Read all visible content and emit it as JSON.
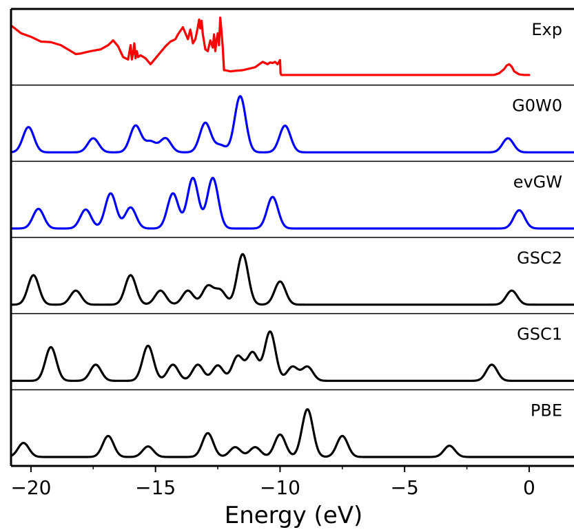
{
  "chart_data": {
    "type": "line",
    "xlabel": "Energy (eV)",
    "ylabel": "",
    "xlim": [
      -20.8,
      1.8
    ],
    "xticks": [
      -20,
      -15,
      -10,
      -5,
      0
    ],
    "xtick_labels": [
      "−20",
      "−15",
      "−10",
      "−5",
      "0"
    ],
    "grid": false,
    "legend": "none",
    "panels": [
      {
        "label": "Exp",
        "color": "#ff0000",
        "kind": "experimental",
        "y_max": 1.0,
        "x": [
          -20.8,
          -20.4,
          -20.0,
          -19.6,
          -19.2,
          -18.8,
          -18.4,
          -18.2,
          -18.0,
          -17.6,
          -17.2,
          -16.9,
          -16.7,
          -16.5,
          -16.3,
          -16.1,
          -16.0,
          -15.95,
          -15.9,
          -15.85,
          -15.8,
          -15.75,
          -15.7,
          -15.6,
          -15.4,
          -15.2,
          -15.0,
          -14.8,
          -14.6,
          -14.4,
          -14.2,
          -14.1,
          -13.9,
          -13.8,
          -13.7,
          -13.6,
          -13.5,
          -13.4,
          -13.3,
          -13.25,
          -13.2,
          -13.15,
          -13.1,
          -13.0,
          -12.9,
          -12.8,
          -12.7,
          -12.65,
          -12.6,
          -12.55,
          -12.5,
          -12.45,
          -12.4,
          -12.35,
          -12.3,
          -12.25,
          -12.2,
          -12.1,
          -12.0,
          -11.8,
          -11.5,
          -11.0,
          -10.7,
          -10.5,
          -10.4,
          -10.3,
          -10.2,
          -10.1,
          -10.0,
          -9.98,
          -9.95,
          -9.9,
          -9.5,
          -8.0,
          -6.0,
          -4.0,
          -2.0,
          -1.4,
          -1.2,
          -1.0,
          -0.9,
          -0.8,
          -0.7,
          -0.6,
          -0.4,
          -0.2,
          0.0
        ],
        "y": [
          0.85,
          0.72,
          0.66,
          0.58,
          0.57,
          0.52,
          0.42,
          0.37,
          0.38,
          0.42,
          0.45,
          0.52,
          0.6,
          0.5,
          0.32,
          0.28,
          0.52,
          0.28,
          0.38,
          0.55,
          0.3,
          0.42,
          0.32,
          0.35,
          0.3,
          0.2,
          0.3,
          0.4,
          0.5,
          0.58,
          0.62,
          0.7,
          0.82,
          0.72,
          0.62,
          0.78,
          0.55,
          0.62,
          0.82,
          0.95,
          0.8,
          0.93,
          0.7,
          0.45,
          0.42,
          0.6,
          0.48,
          0.7,
          0.42,
          0.6,
          0.72,
          0.52,
          0.98,
          0.75,
          0.48,
          0.1,
          0.1,
          0.09,
          0.08,
          0.09,
          0.1,
          0.15,
          0.24,
          0.2,
          0.23,
          0.22,
          0.24,
          0.2,
          0.27,
          0.05,
          0.02,
          0.02,
          0.02,
          0.02,
          0.02,
          0.02,
          0.02,
          0.02,
          0.05,
          0.12,
          0.18,
          0.2,
          0.16,
          0.08,
          0.03,
          0.02,
          0.02
        ]
      },
      {
        "label": "G0W0",
        "color": "#0000ff",
        "kind": "peaks",
        "y_max": 0.85,
        "sigma": 0.22,
        "peaks": [
          {
            "x": -20.1,
            "height": 0.36
          },
          {
            "x": -17.5,
            "height": 0.2
          },
          {
            "x": -15.8,
            "height": 0.38
          },
          {
            "x": -15.2,
            "height": 0.15
          },
          {
            "x": -14.6,
            "height": 0.2
          },
          {
            "x": -13.0,
            "height": 0.42
          },
          {
            "x": -12.4,
            "height": 0.1
          },
          {
            "x": -11.6,
            "height": 0.8
          },
          {
            "x": -9.8,
            "height": 0.38
          },
          {
            "x": -0.85,
            "height": 0.2
          }
        ]
      },
      {
        "label": "evGW",
        "color": "#0000ff",
        "kind": "peaks",
        "y_max": 0.85,
        "sigma": 0.22,
        "peaks": [
          {
            "x": -19.7,
            "height": 0.28
          },
          {
            "x": -17.8,
            "height": 0.27
          },
          {
            "x": -16.8,
            "height": 0.5
          },
          {
            "x": -16.0,
            "height": 0.3
          },
          {
            "x": -14.3,
            "height": 0.5
          },
          {
            "x": -13.5,
            "height": 0.72
          },
          {
            "x": -12.7,
            "height": 0.72
          },
          {
            "x": -10.3,
            "height": 0.45
          },
          {
            "x": -0.4,
            "height": 0.26
          }
        ]
      },
      {
        "label": "GSC2",
        "color": "#000000",
        "kind": "peaks",
        "y_max": 0.85,
        "sigma": 0.22,
        "peaks": [
          {
            "x": -19.9,
            "height": 0.42
          },
          {
            "x": -18.2,
            "height": 0.2
          },
          {
            "x": -16.0,
            "height": 0.42
          },
          {
            "x": -14.8,
            "height": 0.2
          },
          {
            "x": -13.7,
            "height": 0.2
          },
          {
            "x": -12.9,
            "height": 0.26
          },
          {
            "x": -12.4,
            "height": 0.2
          },
          {
            "x": -11.5,
            "height": 0.72
          },
          {
            "x": -10.0,
            "height": 0.33
          },
          {
            "x": -0.7,
            "height": 0.2
          }
        ]
      },
      {
        "label": "GSC1",
        "color": "#000000",
        "kind": "peaks",
        "y_max": 0.85,
        "sigma": 0.22,
        "peaks": [
          {
            "x": -19.2,
            "height": 0.48
          },
          {
            "x": -17.4,
            "height": 0.23
          },
          {
            "x": -15.3,
            "height": 0.5
          },
          {
            "x": -14.3,
            "height": 0.23
          },
          {
            "x": -13.3,
            "height": 0.23
          },
          {
            "x": -12.5,
            "height": 0.22
          },
          {
            "x": -11.7,
            "height": 0.35
          },
          {
            "x": -11.1,
            "height": 0.4
          },
          {
            "x": -10.4,
            "height": 0.7
          },
          {
            "x": -9.5,
            "height": 0.2
          },
          {
            "x": -8.9,
            "height": 0.2
          },
          {
            "x": -1.5,
            "height": 0.23
          }
        ]
      },
      {
        "label": "PBE",
        "color": "#000000",
        "kind": "peaks",
        "y_max": 0.85,
        "sigma": 0.22,
        "peaks": [
          {
            "x": -20.3,
            "height": 0.2
          },
          {
            "x": -16.9,
            "height": 0.3
          },
          {
            "x": -15.3,
            "height": 0.15
          },
          {
            "x": -12.9,
            "height": 0.34
          },
          {
            "x": -11.8,
            "height": 0.14
          },
          {
            "x": -11.0,
            "height": 0.14
          },
          {
            "x": -10.0,
            "height": 0.32
          },
          {
            "x": -8.9,
            "height": 0.68
          },
          {
            "x": -7.5,
            "height": 0.3
          },
          {
            "x": -3.2,
            "height": 0.16
          }
        ]
      }
    ]
  }
}
